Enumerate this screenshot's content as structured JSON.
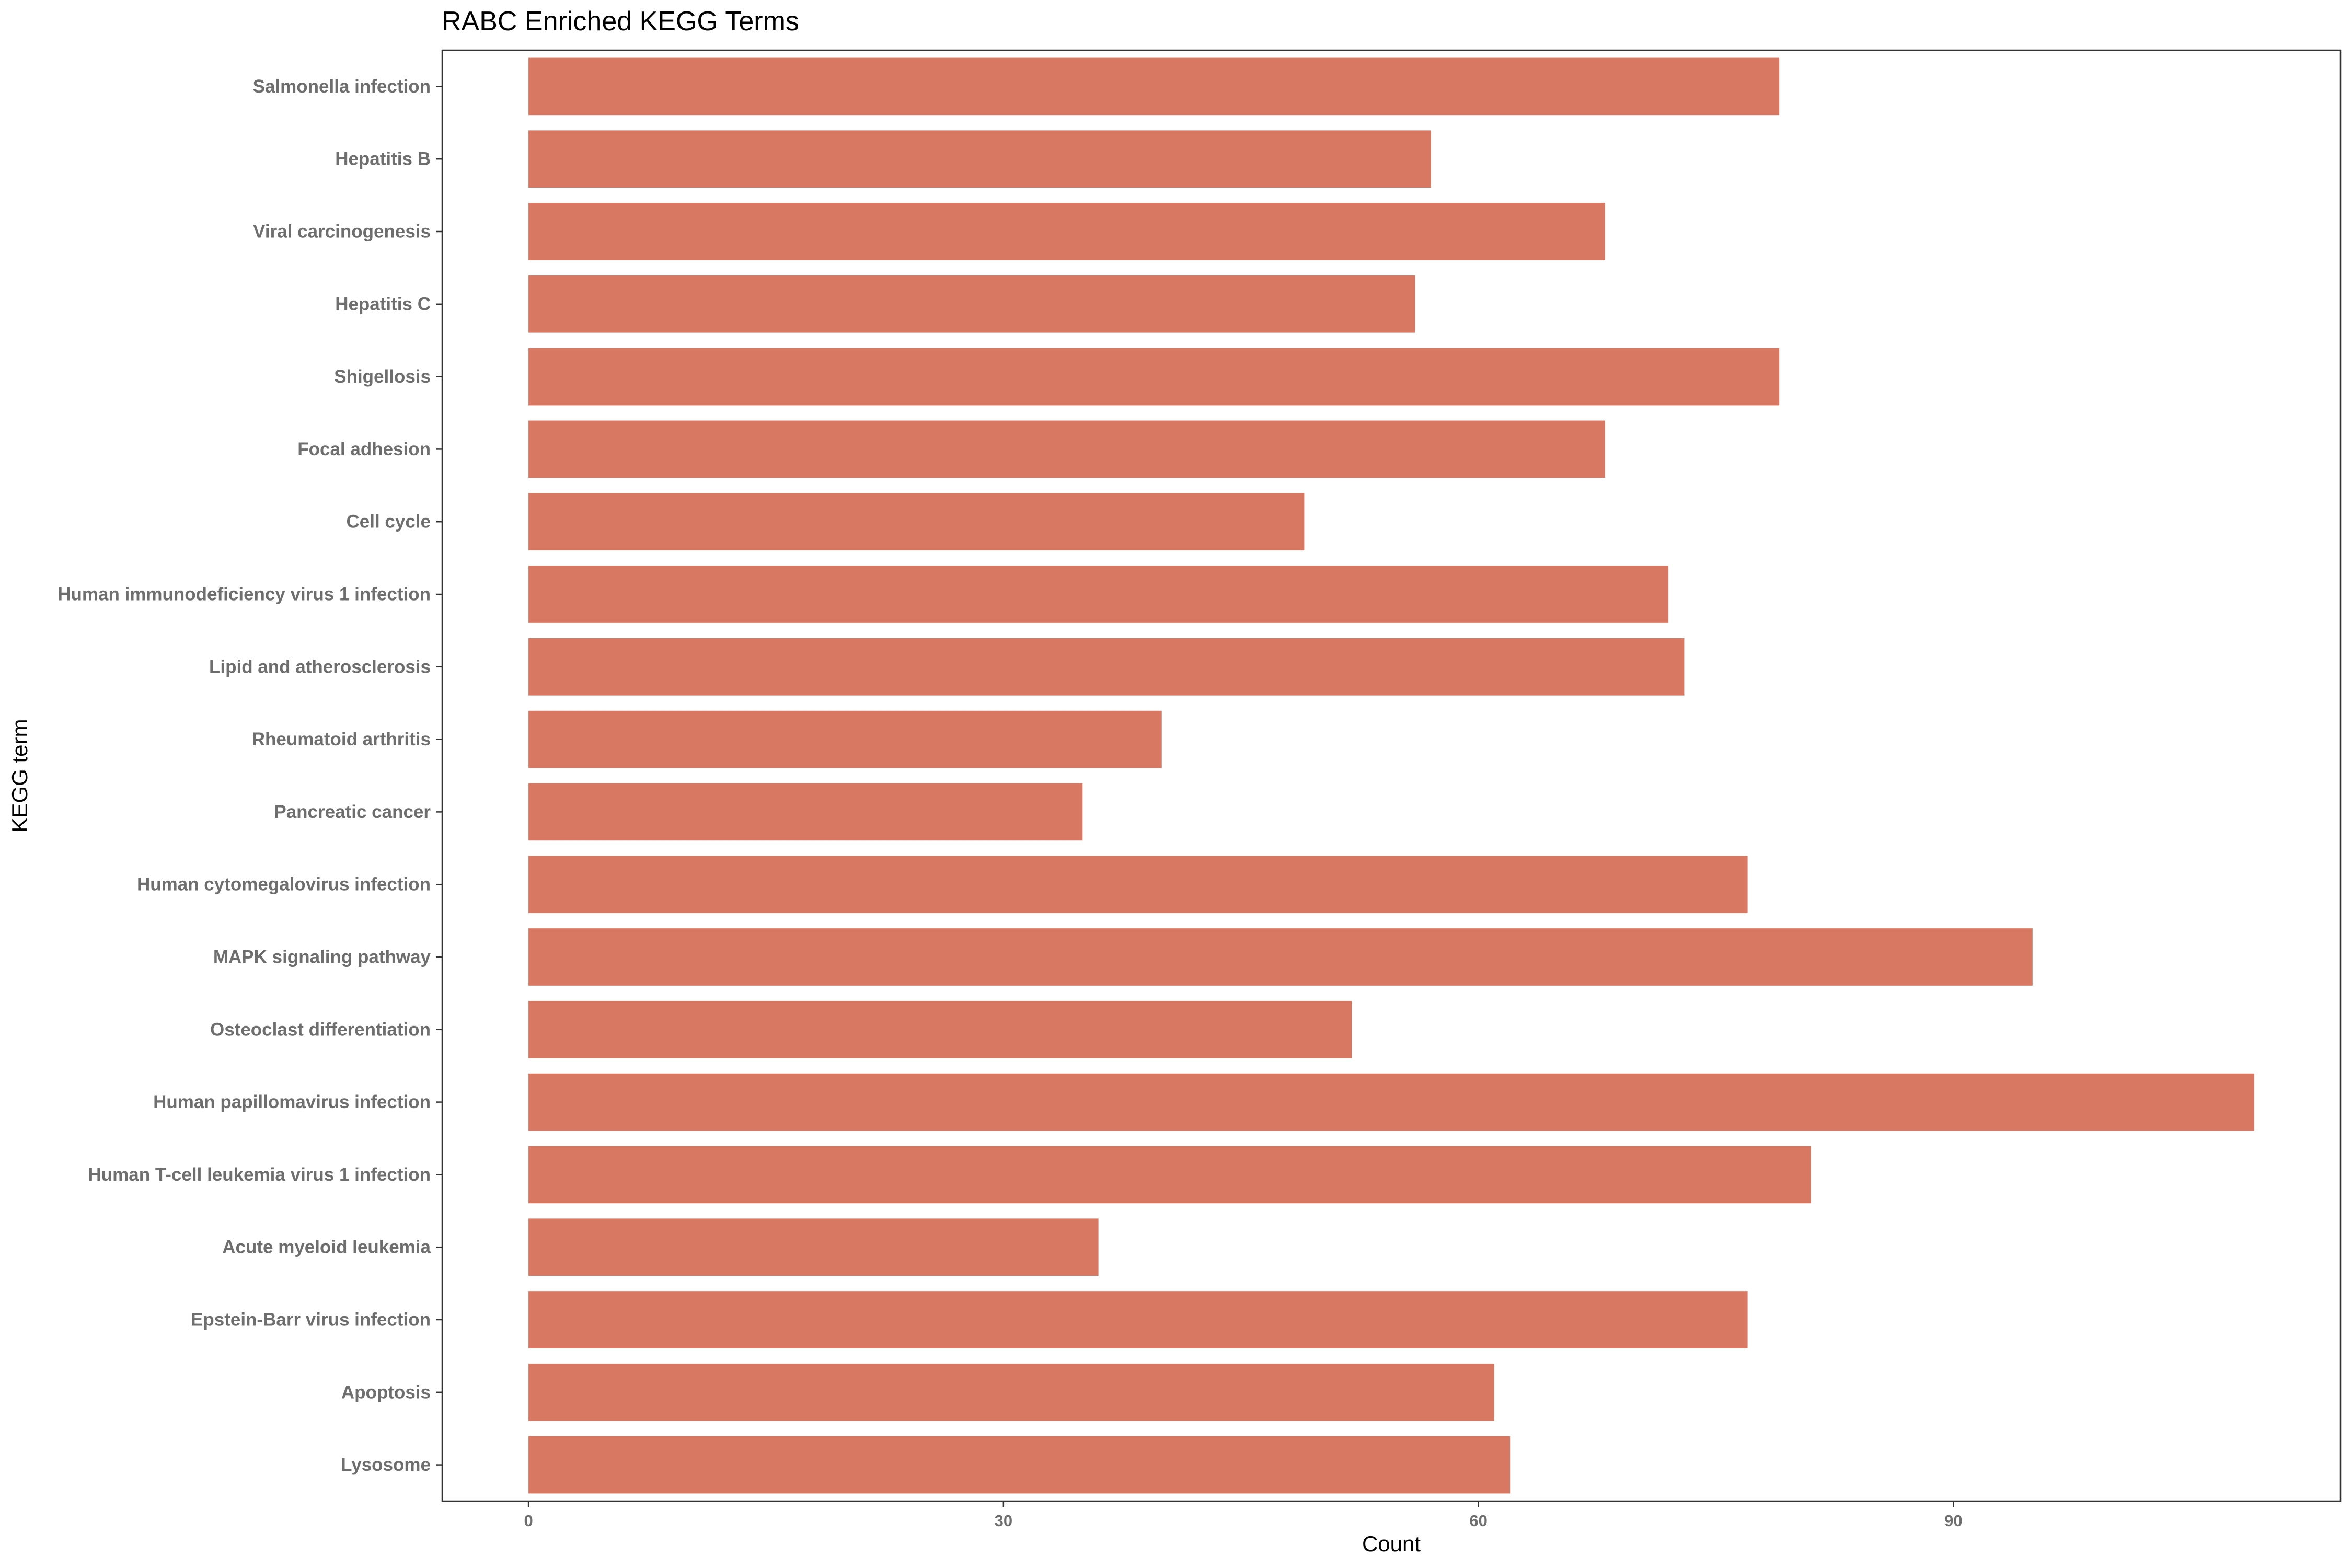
{
  "chart_data": {
    "type": "bar",
    "orientation": "horizontal",
    "title": "RABC Enriched KEGG Terms",
    "xlabel": "Count",
    "ylabel": "KEGG term",
    "categories": [
      "Salmonella infection",
      "Hepatitis B",
      "Viral carcinogenesis",
      "Hepatitis C",
      "Shigellosis",
      "Focal adhesion",
      "Cell cycle",
      "Human immunodeficiency virus 1 infection",
      "Lipid and atherosclerosis",
      "Rheumatoid arthritis",
      "Pancreatic cancer",
      "Human cytomegalovirus infection",
      "MAPK signaling pathway",
      "Osteoclast differentiation",
      "Human papillomavirus infection",
      "Human T-cell leukemia virus 1 infection",
      "Acute myeloid leukemia",
      "Epstein-Barr virus infection",
      "Apoptosis",
      "Lysosome"
    ],
    "values": [
      79,
      57,
      68,
      56,
      79,
      68,
      49,
      72,
      73,
      40,
      35,
      77,
      95,
      52,
      109,
      81,
      36,
      77,
      61,
      62
    ],
    "xticks": [
      0,
      30,
      60,
      90
    ],
    "xlim": [
      -5.45,
      114.45
    ],
    "bar_color": "#d97862",
    "grid": false,
    "legend": "none"
  }
}
